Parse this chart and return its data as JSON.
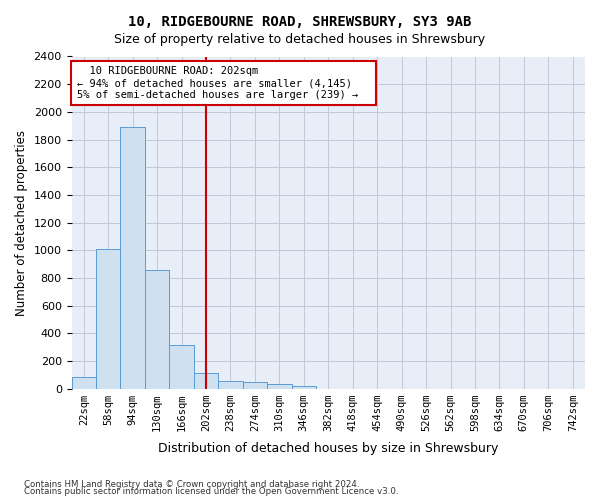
{
  "title1": "10, RIDGEBOURNE ROAD, SHREWSBURY, SY3 9AB",
  "title2": "Size of property relative to detached houses in Shrewsbury",
  "xlabel": "Distribution of detached houses by size in Shrewsbury",
  "ylabel": "Number of detached properties",
  "annotation_line1": "10 RIDGEBOURNE ROAD: 202sqm",
  "annotation_line2": "← 94% of detached houses are smaller (4,145)",
  "annotation_line3": "5% of semi-detached houses are larger (239) →",
  "footer1": "Contains HM Land Registry data © Crown copyright and database right 2024.",
  "footer2": "Contains public sector information licensed under the Open Government Licence v3.0.",
  "bin_labels": [
    "22sqm",
    "58sqm",
    "94sqm",
    "130sqm",
    "166sqm",
    "202sqm",
    "238sqm",
    "274sqm",
    "310sqm",
    "346sqm",
    "382sqm",
    "418sqm",
    "454sqm",
    "490sqm",
    "526sqm",
    "562sqm",
    "598sqm",
    "634sqm",
    "670sqm",
    "706sqm",
    "742sqm"
  ],
  "bar_values": [
    80,
    1010,
    1890,
    860,
    315,
    115,
    55,
    45,
    30,
    15,
    0,
    0,
    0,
    0,
    0,
    0,
    0,
    0,
    0,
    0,
    0
  ],
  "bar_color": "#cfe0f0",
  "bar_edge_color": "#5b9bd5",
  "vline_x_label": "202sqm",
  "vline_color": "#cc0000",
  "ylim": [
    0,
    2400
  ],
  "yticks": [
    0,
    200,
    400,
    600,
    800,
    1000,
    1200,
    1400,
    1600,
    1800,
    2000,
    2200,
    2400
  ],
  "annotation_box_color": "#cc0000",
  "bg_color": "#ffffff",
  "grid_color": "#c0c8d8",
  "ax_facecolor": "#e8eef8"
}
